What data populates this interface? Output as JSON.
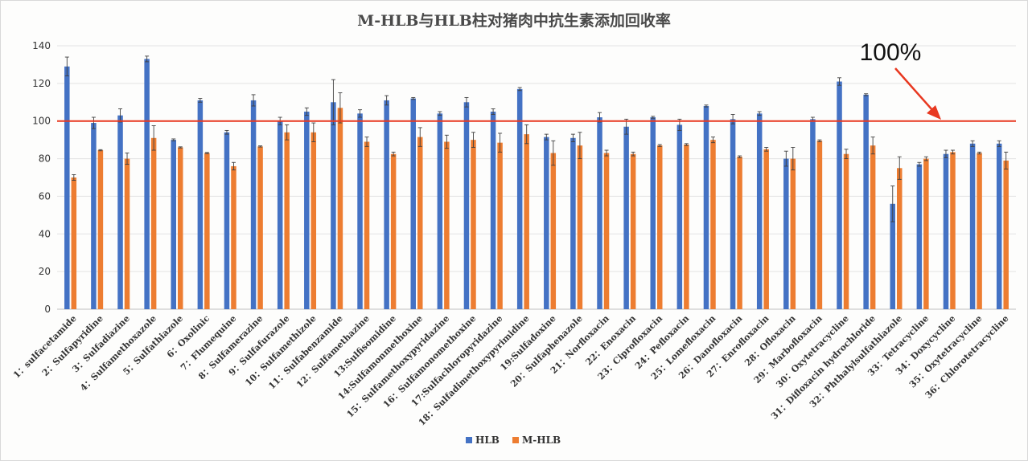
{
  "chart_data": {
    "type": "bar",
    "title": "M-HLB与HLB柱对猪肉中抗生素添加回收率",
    "xlabel": "",
    "ylabel": "",
    "ylim": [
      0,
      140
    ],
    "yticks": [
      0,
      20,
      40,
      60,
      80,
      100,
      120,
      140
    ],
    "grid": true,
    "legend_position": "bottom-center",
    "categories": [
      "1：sulfacetamide",
      "2：Sulfapyridine",
      "3：Sulfadiazine",
      "4：Sulfamethoxazole",
      "5：Sulfathiazole",
      "6：Oxolinic",
      "7：Flumequine",
      "8：Sulfamerazine",
      "9：Sulfafurazole",
      "10：Sulfamethizole",
      "11：Sulfabenzamide",
      "12：Sulfamethazine",
      "13:Sulfisomidine",
      "14:Sulfamonmethoxine",
      "15：Sulfamethoxypyridazine",
      "16：Sulfamonomethoxine",
      "17:Sulfachloropyridazine",
      "18：Sulfadimethoxypyrimidine",
      "19:Sulfadoxine",
      "20：Sulfaphenazole",
      "21：Norfloxacin",
      "22：Enoxacin",
      "23：Ciprofloxacin",
      "24：Pefloxacin",
      "25：Lomefloxacin",
      "26：Danofloxacin",
      "27：Enrofloxacin",
      "28：Ofloxacin",
      "29：Marbofloxacin",
      "30：Oxytetracycline",
      "31：Difloxacin hydrochloride",
      "32：Phthalylsulfathiazole",
      "33：Tetracycline",
      "34：Doxycycline",
      "35：Oxytetracycline",
      "36：Chlorotetracycline"
    ],
    "series": [
      {
        "name": "HLB",
        "color": "#4472c4",
        "values": [
          129,
          99,
          103,
          133,
          90,
          111,
          94,
          111,
          100,
          105,
          110,
          104,
          111,
          112,
          104,
          110,
          105,
          117,
          91.5,
          91,
          102,
          97,
          102,
          98,
          108,
          101,
          104,
          80,
          101,
          121,
          114,
          56,
          77,
          82.5,
          88,
          88
        ],
        "errors": [
          5,
          3,
          3.5,
          1.5,
          0.5,
          1,
          1,
          3,
          2,
          2,
          12,
          2,
          2.5,
          0.5,
          1,
          2.5,
          1.5,
          0.8,
          1.5,
          2,
          2.5,
          4,
          0.5,
          3,
          0.5,
          2.5,
          1,
          4,
          1,
          2,
          0.5,
          9.5,
          1,
          2,
          1.5,
          1.5
        ]
      },
      {
        "name": "M-HLB",
        "color": "#ed7d31",
        "values": [
          70,
          84.5,
          80,
          91,
          86,
          83,
          76,
          86.5,
          94,
          94,
          107,
          89,
          82.5,
          91.5,
          89,
          90,
          88.5,
          93,
          83,
          87,
          83,
          82.5,
          87,
          87.5,
          90,
          81,
          85,
          80,
          89.5,
          82.5,
          87,
          75,
          80,
          83.5,
          83,
          79
        ],
        "errors": [
          1.5,
          0.3,
          3,
          6.5,
          0.3,
          0.3,
          2,
          0.3,
          4,
          5,
          8,
          2.5,
          1,
          5,
          3.5,
          4,
          5,
          5,
          6.5,
          7,
          1.5,
          1,
          0.5,
          0.5,
          1.5,
          0.5,
          1,
          6,
          0.5,
          2.5,
          4.5,
          6,
          1,
          1,
          0.5,
          4.5
        ]
      }
    ],
    "reference_line": {
      "value": 100,
      "color": "#e83820",
      "label": "100%"
    },
    "annotation": {
      "text": "100%",
      "arrow_color": "#e83820"
    }
  }
}
